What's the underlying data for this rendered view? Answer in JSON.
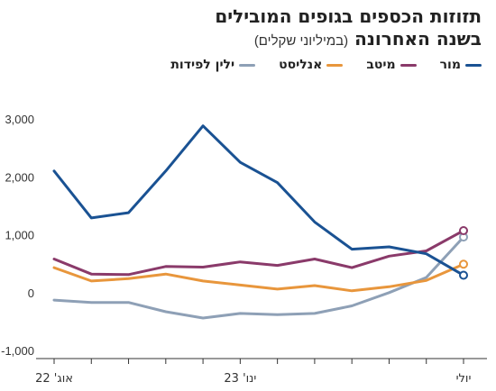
{
  "title": {
    "line1": "תזוזות הכספים בגופים המובילים",
    "line2": "בשנה האחרונה",
    "subtitle": "(במיליוני שקלים)"
  },
  "chart_data": {
    "type": "line",
    "title": "תזוזות הכספים בגופים המובילים בשנה האחרונה (במיליוני שקלים)",
    "xlabel": "",
    "ylabel": "",
    "ylim": [
      -1000,
      3000
    ],
    "y_ticks": [
      {
        "value": 3000,
        "label": "3,000"
      },
      {
        "value": 2000,
        "label": "2,000"
      },
      {
        "value": 1000,
        "label": "1,000"
      },
      {
        "value": 0,
        "label": "0"
      },
      {
        "value": -1000,
        "label": "-1,000"
      }
    ],
    "x": [
      "08/22",
      "09/22",
      "10/22",
      "11/22",
      "12/22",
      "01/23",
      "02/23",
      "03/23",
      "04/23",
      "05/23",
      "06/23",
      "07/23"
    ],
    "x_tick_labels": [
      {
        "index": 0,
        "label": "אוג' 22"
      },
      {
        "index": 5,
        "label": "ינו' 23"
      },
      {
        "index": 11,
        "label": "יולי"
      }
    ],
    "grid": false,
    "legend_position": "top-right",
    "series": [
      {
        "name": "מור",
        "color": "#1a5293",
        "values": [
          2100,
          1290,
          1380,
          2100,
          2880,
          2250,
          1900,
          1220,
          750,
          790,
          670,
          300
        ]
      },
      {
        "name": "מיטב",
        "color": "#8a3a6a",
        "values": [
          580,
          320,
          310,
          450,
          440,
          530,
          470,
          580,
          430,
          630,
          720,
          1070
        ]
      },
      {
        "name": "אנליסט",
        "color": "#e8963c",
        "values": [
          430,
          200,
          240,
          320,
          200,
          130,
          60,
          120,
          30,
          100,
          210,
          490
        ]
      },
      {
        "name": "ילין לפידות",
        "color": "#8ea0b6",
        "values": [
          -130,
          -170,
          -170,
          -330,
          -440,
          -360,
          -380,
          -360,
          -230,
          0,
          260,
          960
        ]
      }
    ]
  }
}
